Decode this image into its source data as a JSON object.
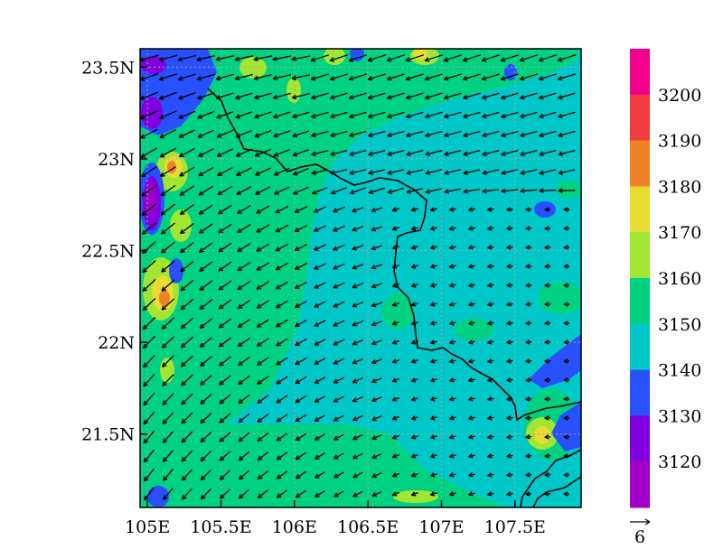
{
  "map": {
    "lon_range": [
      104.95,
      107.95
    ],
    "lat_range": [
      21.1,
      23.6
    ],
    "lon_ticks": [
      {
        "value": 105.0,
        "label": "105E"
      },
      {
        "value": 105.5,
        "label": "105.5E"
      },
      {
        "value": 106.0,
        "label": "106E"
      },
      {
        "value": 106.5,
        "label": "106.5E"
      },
      {
        "value": 107.0,
        "label": "107E"
      },
      {
        "value": 107.5,
        "label": "107.5E"
      }
    ],
    "lat_ticks": [
      {
        "value": 21.5,
        "label": "21.5N"
      },
      {
        "value": 22.0,
        "label": "22N"
      },
      {
        "value": 22.5,
        "label": "22.5N"
      },
      {
        "value": 23.0,
        "label": "23N"
      },
      {
        "value": 23.5,
        "label": "23.5N"
      }
    ],
    "gridlines": true
  },
  "colorbar": {
    "labels": [
      "3120",
      "3130",
      "3140",
      "3150",
      "3160",
      "3170",
      "3180",
      "3190",
      "3200"
    ],
    "colors": [
      "#a000c8",
      "#8000e0",
      "#2850ff",
      "#00c8c8",
      "#00d282",
      "#a0e632",
      "#e6dc32",
      "#f08228",
      "#f03c3c",
      "#f0008c"
    ]
  },
  "field_colors": {
    "background": "#00c8c8",
    "level_3150": "#00d282",
    "level_3160": "#a0e632",
    "level_3170": "#e6dc32",
    "level_3180": "#f08228",
    "level_3130": "#2850ff",
    "level_3120": "#8000e0",
    "level_3110": "#a000c8"
  },
  "reference_vector": {
    "label": "6"
  }
}
